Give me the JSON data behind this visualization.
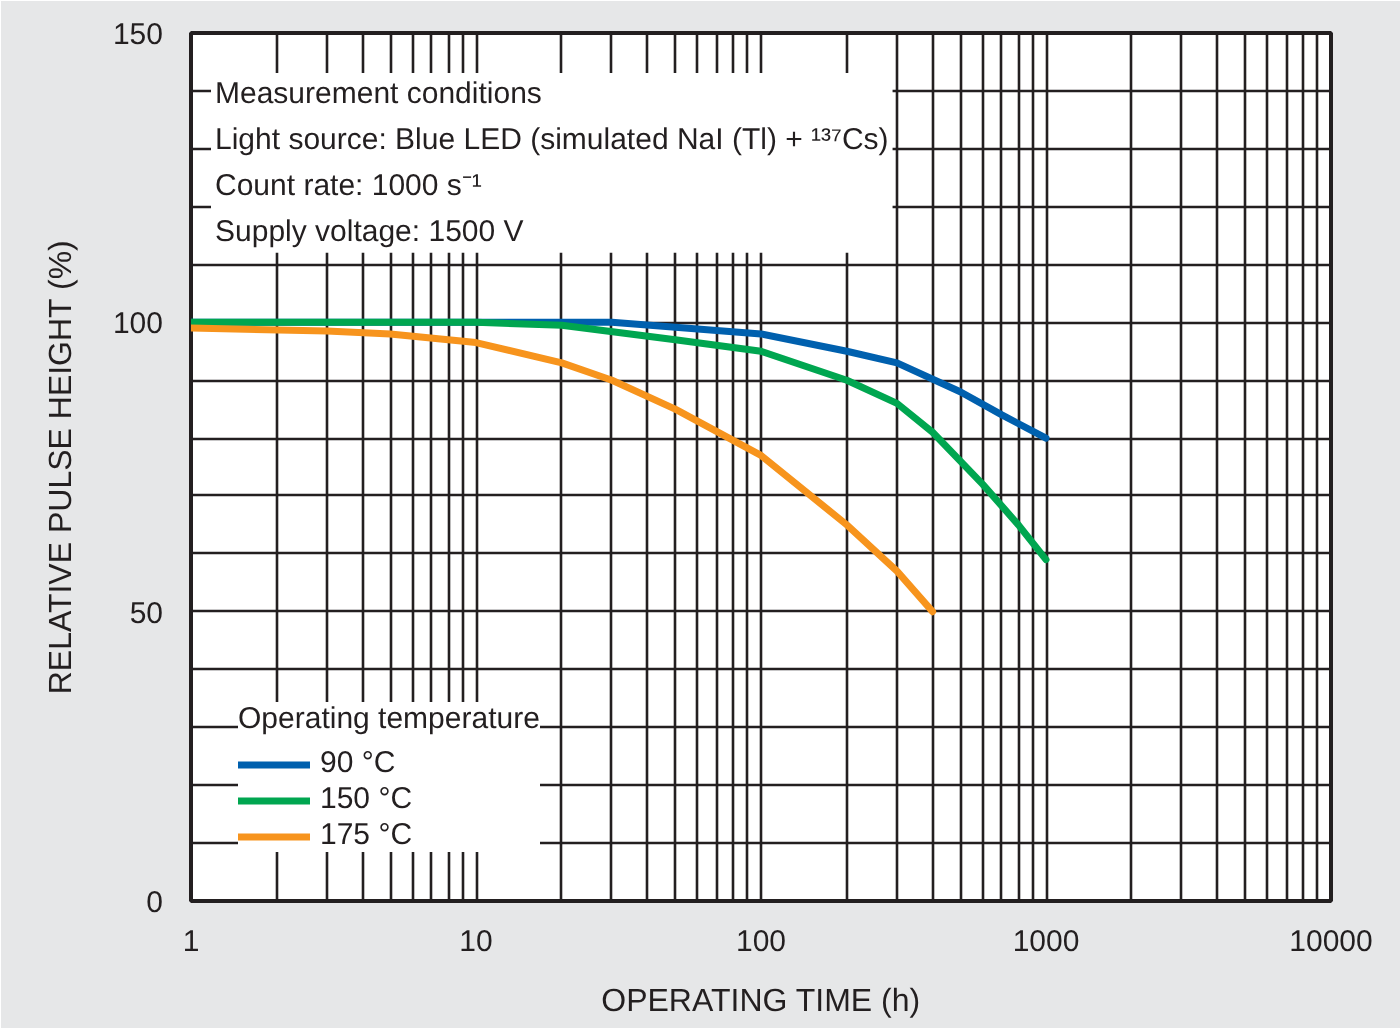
{
  "chart_data": {
    "type": "line",
    "xlabel": "OPERATING TIME (h)",
    "ylabel": "RELATIVE PULSE HEIGHT (%)",
    "legend_title": "Operating temperature",
    "log": "x",
    "xlim": [
      1,
      10000
    ],
    "ylim": [
      0,
      150
    ],
    "xticks": [
      1,
      {
        "value": 2,
        "label": null
      },
      {
        "value": 3,
        "label": null
      },
      {
        "value": 4,
        "label": null
      },
      {
        "value": 5,
        "label": null
      },
      {
        "value": 6,
        "label": null
      },
      {
        "value": 7,
        "label": null
      },
      {
        "value": 8,
        "label": null
      },
      {
        "value": 9,
        "label": null
      },
      10,
      {
        "value": 20,
        "label": null
      },
      {
        "value": 30,
        "label": null
      },
      {
        "value": 40,
        "label": null
      },
      {
        "value": 50,
        "label": null
      },
      {
        "value": 60,
        "label": null
      },
      {
        "value": 70,
        "label": null
      },
      {
        "value": 80,
        "label": null
      },
      {
        "value": 90,
        "label": null
      },
      100,
      {
        "value": 200,
        "label": null
      },
      {
        "value": 300,
        "label": null
      },
      {
        "value": 400,
        "label": null
      },
      {
        "value": 500,
        "label": null
      },
      {
        "value": 600,
        "label": null
      },
      {
        "value": 700,
        "label": null
      },
      {
        "value": 800,
        "label": null
      },
      {
        "value": 900,
        "label": null
      },
      1000,
      {
        "value": 2000,
        "label": null
      },
      {
        "value": 3000,
        "label": null
      },
      {
        "value": 4000,
        "label": null
      },
      {
        "value": 5000,
        "label": null
      },
      {
        "value": 6000,
        "label": null
      },
      {
        "value": 7000,
        "label": null
      },
      {
        "value": 8000,
        "label": null
      },
      {
        "value": 9000,
        "label": null
      },
      10000
    ],
    "yticks": [
      0,
      {
        "value": 10,
        "label": null
      },
      {
        "value": 20,
        "label": null
      },
      {
        "value": 30,
        "label": null
      },
      {
        "value": 40,
        "label": null
      },
      50,
      {
        "value": 60,
        "label": null
      },
      {
        "value": 70,
        "label": null
      },
      {
        "value": 80,
        "label": null
      },
      {
        "value": 90,
        "label": null
      },
      100,
      {
        "value": 110,
        "label": null
      },
      {
        "value": 120,
        "label": null
      },
      {
        "value": 130,
        "label": null
      },
      {
        "value": 140,
        "label": null
      },
      150
    ],
    "grid": true,
    "legend": "bottom left",
    "line_style": "solid",
    "annotations": [
      "Measurement conditions",
      "Light source: Blue LED (simulated NaI (Tl) + ¹³⁷Cs)",
      "Count rate: 1000 s⁻¹",
      "Supply voltage: 1500 V"
    ],
    "series": [
      {
        "name": "90 °C",
        "color": "#0060ae",
        "x": [
          1,
          30,
          100,
          200,
          300,
          500,
          700,
          1000
        ],
        "values": [
          100,
          100,
          98,
          95,
          93,
          88,
          84,
          80
        ]
      },
      {
        "name": "150 °C",
        "color": "#00a650",
        "x": [
          1,
          10,
          20,
          50,
          100,
          200,
          300,
          400,
          600,
          800,
          1000
        ],
        "values": [
          100,
          100,
          99.5,
          97,
          95,
          90,
          86,
          81,
          72,
          65,
          59
        ]
      },
      {
        "name": "175 °C",
        "color": "#f7941d",
        "x": [
          1,
          3,
          5,
          10,
          20,
          30,
          50,
          100,
          200,
          300,
          400
        ],
        "values": [
          99,
          98.5,
          98,
          96.5,
          93,
          90,
          85,
          77,
          65,
          57,
          50
        ]
      }
    ]
  }
}
